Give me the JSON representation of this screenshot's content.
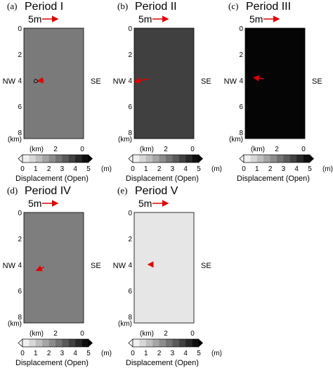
{
  "panels": [
    {
      "id": "a",
      "label": "(a)",
      "title": "Period I",
      "fill": "#7a7a7a",
      "scale_label": "5m",
      "vector": {
        "x_km": 2.7,
        "y_km": 4.0,
        "dx_m": 2.0,
        "dy_m": 0.3
      },
      "show_source_circle": true,
      "axis_labels": {
        "left": "NW",
        "right": "SE",
        "unit": "(km)"
      },
      "y_ticks": [
        "0",
        "2",
        "4",
        "6",
        "8"
      ],
      "x_ticks": [
        "(km)",
        "2",
        "0"
      ],
      "colorbar": {
        "ticks": [
          "0",
          "1",
          "2",
          "3",
          "4",
          "5"
        ],
        "unit": "(m)",
        "label": "Displacement (Open)"
      }
    },
    {
      "id": "b",
      "label": "(b)",
      "title": "Period II",
      "fill": "#404040",
      "scale_label": "5m",
      "vector": {
        "x_km": 2.0,
        "y_km": 3.9,
        "dx_m": 4.6,
        "dy_m": 0.9
      },
      "show_source_circle": false,
      "axis_labels": {
        "left": "NW",
        "right": "SE",
        "unit": "(km)"
      },
      "y_ticks": [
        "0",
        "2",
        "4",
        "6",
        "8"
      ],
      "x_ticks": [
        "(km)",
        "2",
        "0"
      ],
      "colorbar": {
        "ticks": [
          "0",
          "1",
          "2",
          "3",
          "4",
          "5"
        ],
        "unit": "(m)",
        "label": "Displacement (Open)"
      }
    },
    {
      "id": "c",
      "label": "(c)",
      "title": "Period III",
      "fill": "#050505",
      "scale_label": "5m",
      "vector": {
        "x_km": 2.5,
        "y_km": 3.9,
        "dx_m": 3.2,
        "dy_m": -0.4
      },
      "show_source_circle": false,
      "axis_labels": {
        "left": "NW",
        "right": "SE",
        "unit": "(km)"
      },
      "y_ticks": [
        "0",
        "2",
        "4",
        "6",
        "8"
      ],
      "x_ticks": [
        "(km)",
        "2",
        "0"
      ],
      "colorbar": {
        "ticks": [
          "0",
          "1",
          "2",
          "3",
          "4",
          "5"
        ],
        "unit": "(m)",
        "label": "Displacement (Open)"
      }
    },
    {
      "id": "d",
      "label": "(d)",
      "title": "Period IV",
      "fill": "#7e7e7e",
      "scale_label": "5m",
      "vector": {
        "x_km": 2.7,
        "y_km": 4.2,
        "dx_m": 2.4,
        "dy_m": 1.1
      },
      "show_source_circle": false,
      "axis_labels": {
        "left": "NW",
        "right": "SE",
        "unit": "(km)"
      },
      "y_ticks": [
        "0",
        "2",
        "4",
        "6",
        "8"
      ],
      "x_ticks": [
        "(km)",
        "2",
        "0"
      ],
      "colorbar": {
        "ticks": [
          "0",
          "1",
          "2",
          "3",
          "4",
          "5"
        ],
        "unit": "(m)",
        "label": "Displacement (Open)"
      }
    },
    {
      "id": "e",
      "label": "(e)",
      "title": "Period V",
      "fill": "#e6e6e6",
      "scale_label": "5m",
      "vector": {
        "x_km": 2.1,
        "y_km": 4.0,
        "dx_m": 0.5,
        "dy_m": 0.0
      },
      "show_source_circle": false,
      "axis_labels": {
        "left": "NW",
        "right": "SE",
        "unit": "(km)"
      },
      "y_ticks": [
        "0",
        "2",
        "4",
        "6",
        "8"
      ],
      "x_ticks": [
        "(km)",
        "2",
        "0"
      ],
      "colorbar": {
        "ticks": [
          "0",
          "1",
          "2",
          "3",
          "4",
          "5"
        ],
        "unit": "(m)",
        "label": "Displacement (Open)"
      }
    }
  ],
  "colors": {
    "vector": "#e00000",
    "outline": "#000000"
  }
}
